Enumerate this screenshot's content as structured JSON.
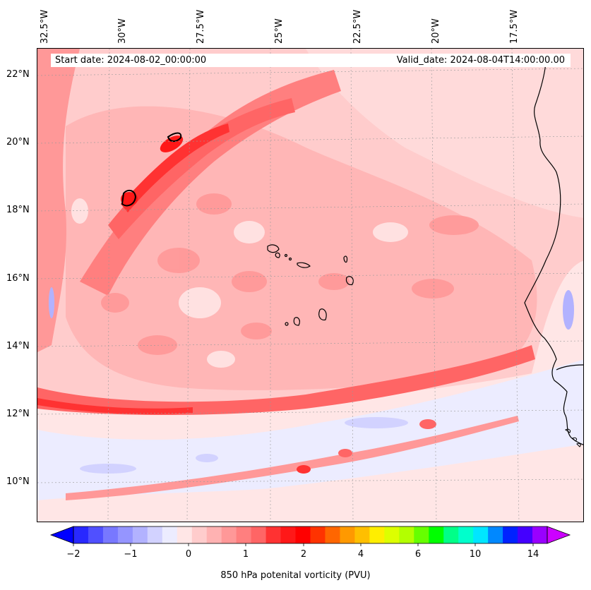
{
  "header": {
    "start_date": "Start date: 2024-08-02_00:00:00",
    "valid_date": "Valid_date: 2024-08-04T14:00:00.00"
  },
  "longitude_labels": [
    "32.5°W",
    "30°W",
    "27.5°W",
    "25°W",
    "22.5°W",
    "20°W",
    "17.5°W"
  ],
  "latitude_labels": [
    "22°N",
    "20°N",
    "18°N",
    "16°N",
    "14°N",
    "12°N",
    "10°N"
  ],
  "colorbar": {
    "title": "850 hPa potenital vorticity (PVU)",
    "ticks": [
      "−2",
      "−1",
      "0",
      "1",
      "2",
      "4",
      "6",
      "10",
      "14"
    ],
    "colors": [
      "#0000ff",
      "#2828ff",
      "#5050ff",
      "#7878ff",
      "#9595ff",
      "#b2b2ff",
      "#d2d2ff",
      "#ececff",
      "#ffe6e6",
      "#ffcccc",
      "#ffb2b2",
      "#ff9898",
      "#ff7f7f",
      "#ff6565",
      "#ff3232",
      "#ff1818",
      "#ff0000",
      "#ff3300",
      "#ff6600",
      "#ff9900",
      "#ffbf00",
      "#ffee00",
      "#ddff00",
      "#b3ff00",
      "#66ff00",
      "#00ff00",
      "#00ff88",
      "#00ffcc",
      "#00e6ff",
      "#0088ff",
      "#0022ff",
      "#4400ff",
      "#9900ff",
      "#cc00ff"
    ]
  },
  "map": {
    "region": "Eastern tropical Atlantic, Cape Verde and West African coast",
    "field": "850 hPa potential vorticity"
  }
}
